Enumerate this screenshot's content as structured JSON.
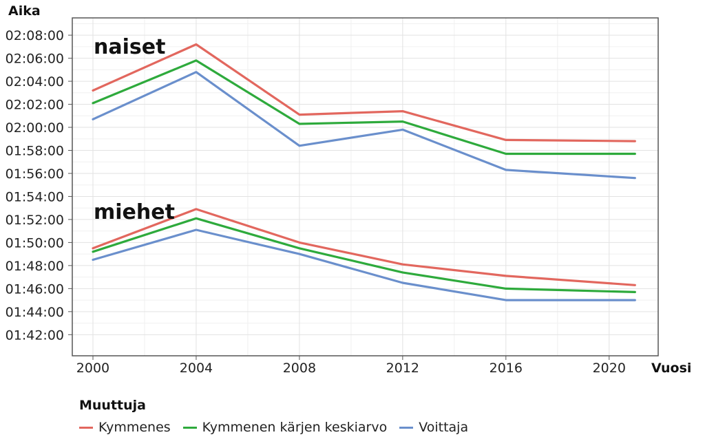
{
  "chart_data": {
    "type": "line",
    "title": "",
    "ylabel": "Aika",
    "xlabel": "Vuosi",
    "x": [
      2000,
      2004,
      2008,
      2012,
      2016,
      2021
    ],
    "x_ticks": [
      "2000",
      "2004",
      "2008",
      "2012",
      "2016",
      "2020"
    ],
    "x_tick_values": [
      2000,
      2004,
      2008,
      2012,
      2016,
      2020
    ],
    "xlim": [
      1999.2,
      2021.9
    ],
    "y_ticks": [
      "01:42:00",
      "01:44:00",
      "01:46:00",
      "01:48:00",
      "01:50:00",
      "01:52:00",
      "01:54:00",
      "01:56:00",
      "01:58:00",
      "02:00:00",
      "02:02:00",
      "02:04:00",
      "02:06:00",
      "02:08:00"
    ],
    "ylim": [
      "01:40:10",
      "02:09:30"
    ],
    "grid": true,
    "group_labels": [
      {
        "text": "naiset"
      },
      {
        "text": "miehet"
      }
    ],
    "legend": {
      "title": "Muuttuja",
      "position": "bottom"
    },
    "series": [
      {
        "name": "Kymmenes",
        "color": "#e2675e",
        "group": "naiset",
        "values": [
          "02:03:12",
          "02:07:12",
          "02:01:06",
          "02:01:24",
          "01:58:54",
          "01:58:48"
        ]
      },
      {
        "name": "Kymmenen kärjen keskiarvo",
        "color": "#2eaa3c",
        "group": "naiset",
        "values": [
          "02:02:06",
          "02:05:48",
          "02:00:18",
          "02:00:30",
          "01:57:42",
          "01:57:42"
        ]
      },
      {
        "name": "Voittaja",
        "color": "#6a8fcc",
        "group": "naiset",
        "values": [
          "02:00:42",
          "02:04:48",
          "01:58:24",
          "01:59:48",
          "01:56:18",
          "01:55:36"
        ]
      },
      {
        "name": "Kymmenes",
        "color": "#e2675e",
        "group": "miehet",
        "values": [
          "01:49:30",
          "01:52:54",
          "01:50:00",
          "01:48:06",
          "01:47:06",
          "01:46:18"
        ]
      },
      {
        "name": "Kymmenen kärjen keskiarvo",
        "color": "#2eaa3c",
        "group": "miehet",
        "values": [
          "01:49:12",
          "01:52:06",
          "01:49:30",
          "01:47:24",
          "01:46:00",
          "01:45:42"
        ]
      },
      {
        "name": "Voittaja",
        "color": "#6a8fcc",
        "group": "miehet",
        "values": [
          "01:48:30",
          "01:51:06",
          "01:49:00",
          "01:46:30",
          "01:45:00",
          "01:45:00"
        ]
      }
    ]
  }
}
